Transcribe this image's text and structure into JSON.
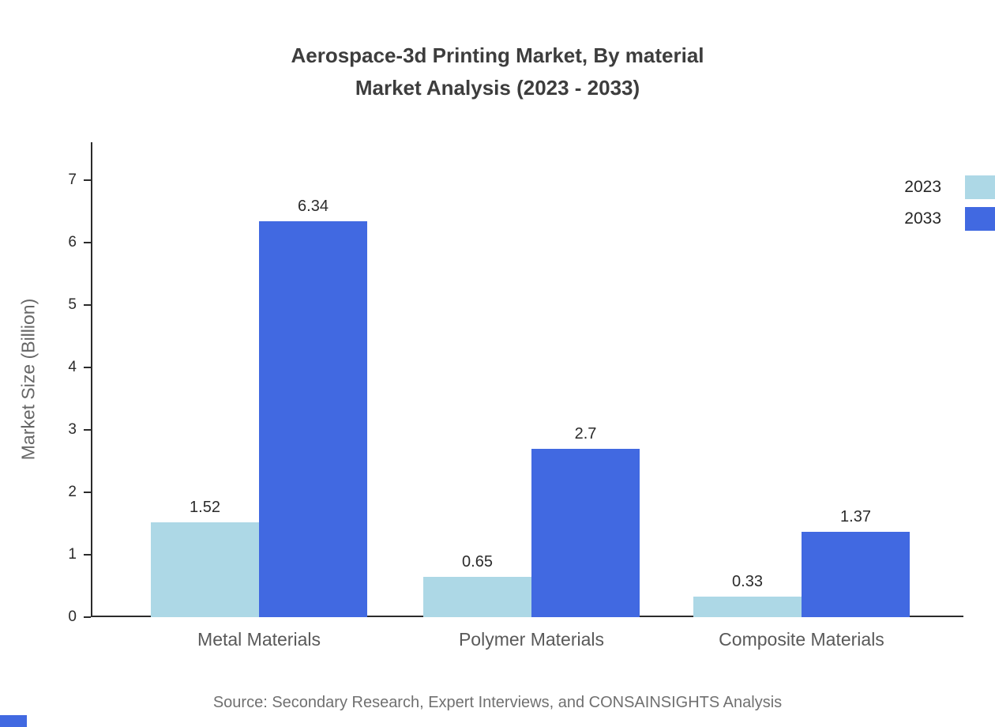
{
  "chart_data": {
    "type": "bar",
    "title": "Aerospace-3d Printing Market, By material",
    "subtitle": "Market Analysis (2023 - 2033)",
    "categories": [
      "Metal Materials",
      "Polymer Materials",
      "Composite Materials"
    ],
    "series": [
      {
        "name": "2023",
        "color": "#ADD8E6",
        "values": [
          1.52,
          0.65,
          0.33
        ]
      },
      {
        "name": "2033",
        "color": "#4169E1",
        "values": [
          6.34,
          2.7,
          1.37
        ]
      }
    ],
    "xlabel": "",
    "ylabel": "Market Size (Billion)",
    "ylim": [
      0,
      7
    ],
    "yticks": [
      0,
      1,
      2,
      3,
      4,
      5,
      6,
      7
    ],
    "grid": false,
    "legend_position": "top-right"
  },
  "source_text": "Source: Secondary Research, Expert Interviews, and CONSAINSIGHTS Analysis",
  "colors": {
    "series_2023": "#ADD8E6",
    "series_2033": "#4169E1",
    "title_text": "#3d3d3d",
    "axis_line": "#2b2b2b",
    "tick_text": "#2b2b2b",
    "category_text": "#595959",
    "muted_text": "#707070",
    "corner_mark": "#4169E1"
  }
}
